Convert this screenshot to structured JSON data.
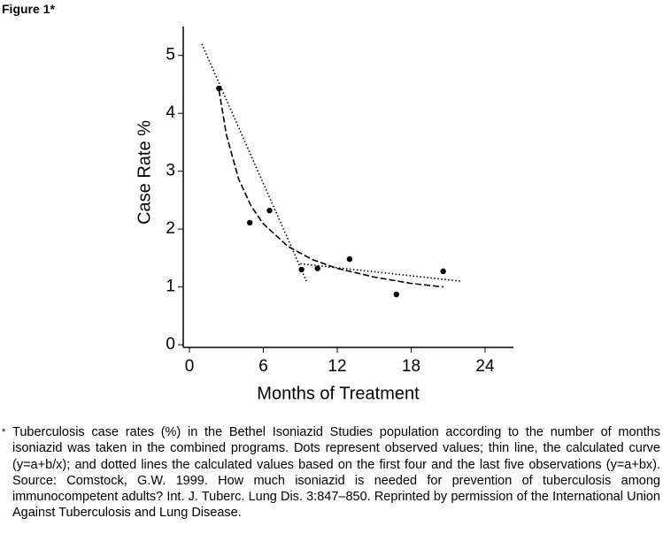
{
  "figure_label": "Figure 1*",
  "chart_data": {
    "type": "scatter",
    "x_label": "Months of Treatment",
    "y_label": "Case Rate %",
    "xlim": [
      0,
      26.3
    ],
    "ylim": [
      0,
      5.5
    ],
    "xticks": [
      0,
      6,
      12,
      18,
      24
    ],
    "yticks": [
      0,
      1,
      2,
      3,
      4,
      5
    ],
    "series": [
      {
        "color": "#000000",
        "line": "none",
        "marker": true,
        "x": [
          2.4,
          4.9,
          6.5,
          9.1,
          10.4,
          13.0,
          16.8,
          20.6
        ],
        "values": [
          4.43,
          2.11,
          2.32,
          1.3,
          1.32,
          1.48,
          0.87,
          1.27
        ]
      },
      {
        "color": "#000000",
        "line": "dashed",
        "marker": false,
        "x": [
          2.4,
          3,
          4,
          5,
          6,
          8,
          10,
          12,
          15,
          18,
          20.6
        ],
        "values": [
          4.4,
          3.63,
          2.86,
          2.4,
          2.09,
          1.7,
          1.47,
          1.32,
          1.17,
          1.06,
          1.0
        ]
      },
      {
        "color": "#000000",
        "line": "dotted",
        "marker": false,
        "x": [
          1.0,
          9.5
        ],
        "values": [
          5.2,
          1.1
        ]
      },
      {
        "color": "#000000",
        "line": "dotted",
        "marker": false,
        "x": [
          9.0,
          22.0
        ],
        "values": [
          1.4,
          1.1
        ]
      }
    ]
  },
  "caption": {
    "marker": "*",
    "text": "Tuberculosis case rates (%) in the Bethel Isoniazid Studies population according to the number of months isoniazid was taken in the combined programs. Dots represent observed values; thin line, the calculated curve (y=a+b/x); and dotted lines the calculated values based on the first four and the last five observations (y=a+bx). Source: Comstock, G.W. 1999. How much isoniazid is needed for prevention of tuberculosis among immunocompetent adults? Int. J. Tuberc. Lung Dis. 3:847–850. Reprinted by permission of the International Union Against Tuberculosis and Lung Disease."
  }
}
